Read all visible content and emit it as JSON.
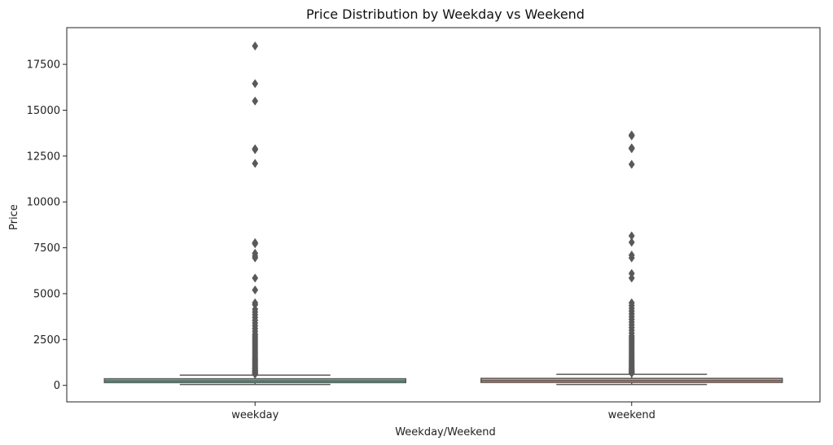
{
  "chart_data": {
    "type": "box",
    "title": "Price Distribution by Weekday vs Weekend",
    "xlabel": "Weekday/Weekend",
    "ylabel": "Price",
    "categories": [
      "weekday",
      "weekend"
    ],
    "ylim": [
      -900,
      19500
    ],
    "yticks": [
      0,
      2500,
      5000,
      7500,
      10000,
      12500,
      15000,
      17500
    ],
    "grid": false,
    "boxes": [
      {
        "category": "weekday",
        "color": "#66c2a5",
        "q1": 150,
        "median": 240,
        "q3": 360,
        "whisker_low": 50,
        "whisker_high": 560,
        "outliers": [
          18500,
          16450,
          15500,
          12900,
          12850,
          12100,
          7780,
          7720,
          7200,
          7050,
          6950,
          5850,
          5200,
          4500,
          4400,
          4150,
          4000,
          3850,
          3700,
          3550,
          3400,
          3250,
          3100,
          2950,
          2800,
          2700,
          2600,
          2500,
          2400,
          2300,
          2200,
          2100,
          2000,
          1900,
          1800,
          1700,
          1600,
          1500,
          1420,
          1340,
          1260,
          1180,
          1100,
          1020,
          950,
          880,
          820,
          760,
          700,
          650,
          610
        ]
      },
      {
        "category": "weekend",
        "color": "#fc8d62",
        "q1": 160,
        "median": 260,
        "q3": 380,
        "whisker_low": 50,
        "whisker_high": 600,
        "outliers": [
          13650,
          13600,
          12950,
          12900,
          12050,
          8150,
          7800,
          7100,
          6950,
          6100,
          5850,
          4500,
          4350,
          4200,
          4050,
          3900,
          3750,
          3600,
          3450,
          3300,
          3150,
          3000,
          2850,
          2700,
          2600,
          2500,
          2400,
          2300,
          2200,
          2100,
          2000,
          1900,
          1800,
          1700,
          1600,
          1500,
          1420,
          1340,
          1260,
          1180,
          1100,
          1020,
          950,
          880,
          820,
          760,
          700,
          660
        ]
      }
    ]
  }
}
